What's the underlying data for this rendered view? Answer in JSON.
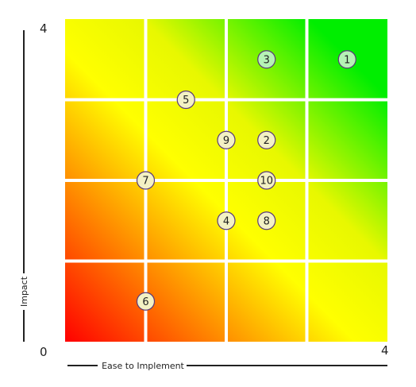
{
  "chart_data": {
    "type": "scatter",
    "title": "",
    "xlabel": "Ease to Implement",
    "ylabel": "Impact",
    "xlim": [
      0,
      4
    ],
    "ylim": [
      0,
      4
    ],
    "x_ticks": [
      "0",
      "4"
    ],
    "y_ticks": [
      "0",
      "4"
    ],
    "grid": true,
    "grid_divisions": 4,
    "background": "gradient from red (low ease, low impact) through yellow to green (high ease, high impact)",
    "colors": {
      "low": "#ff0000",
      "mid": "#ffff00",
      "high": "#00ee00",
      "marker_default": "#f3f1c4",
      "marker_highlight": "#b5f2b5",
      "marker_stroke": "#5a3a7a"
    },
    "points": [
      {
        "label": "1",
        "x": 3.5,
        "y": 3.5,
        "highlight": true
      },
      {
        "label": "2",
        "x": 2.5,
        "y": 2.5,
        "highlight": false
      },
      {
        "label": "3",
        "x": 2.5,
        "y": 3.5,
        "highlight": true
      },
      {
        "label": "4",
        "x": 2.0,
        "y": 1.5,
        "highlight": false
      },
      {
        "label": "5",
        "x": 1.5,
        "y": 3.0,
        "highlight": false
      },
      {
        "label": "6",
        "x": 1.0,
        "y": 0.5,
        "highlight": false
      },
      {
        "label": "7",
        "x": 1.0,
        "y": 2.0,
        "highlight": false
      },
      {
        "label": "8",
        "x": 2.5,
        "y": 1.5,
        "highlight": false
      },
      {
        "label": "9",
        "x": 2.0,
        "y": 2.5,
        "highlight": false
      },
      {
        "label": "10",
        "x": 2.5,
        "y": 2.0,
        "highlight": false
      }
    ]
  }
}
